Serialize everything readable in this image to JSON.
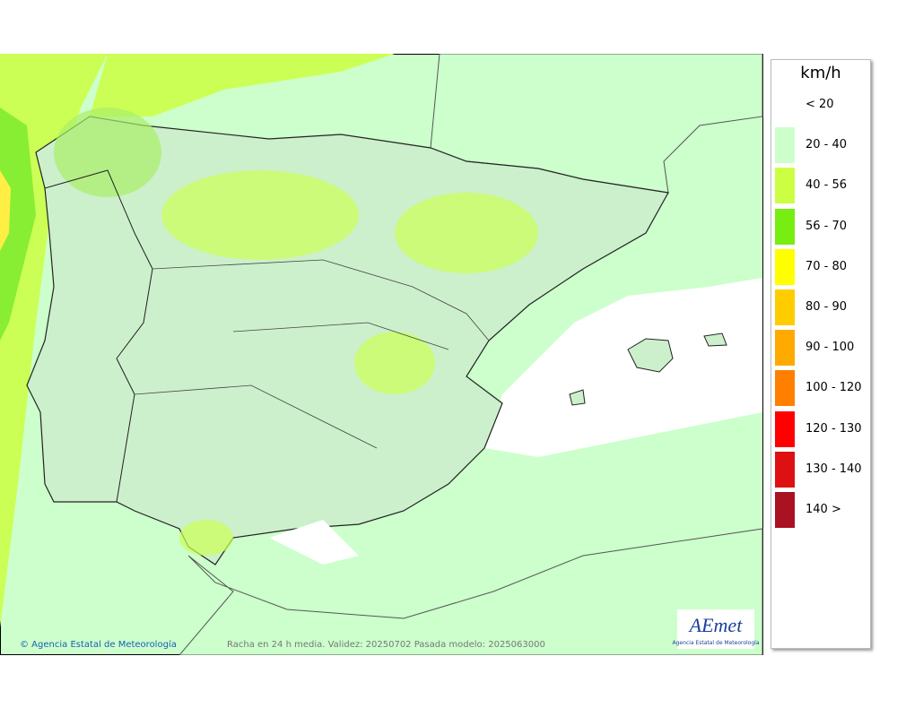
{
  "legend": {
    "title": "km/h",
    "items": [
      {
        "label": "< 20",
        "color": "#ffffff"
      },
      {
        "label": "20 - 40",
        "color": "#ccffcc"
      },
      {
        "label": "40 - 56",
        "color": "#ccff44"
      },
      {
        "label": "56 - 70",
        "color": "#77ee11"
      },
      {
        "label": "70 - 80",
        "color": "#ffff00"
      },
      {
        "label": "80 - 90",
        "color": "#ffcc00"
      },
      {
        "label": "90 - 100",
        "color": "#ffaa00"
      },
      {
        "label": "100 - 120",
        "color": "#ff8000"
      },
      {
        "label": "120 - 130",
        "color": "#ff0000"
      },
      {
        "label": "130 - 140",
        "color": "#dd1111"
      },
      {
        "label": "140 >",
        "color": "#aa1122"
      }
    ]
  },
  "footer": {
    "copyright": "© Agencia Estatal de Meteorología",
    "caption": "Racha en 24 h media. Validez: 20250702 Pasada modelo: 2025063000"
  },
  "logo": {
    "name": "AEmet",
    "subtitle": "Agencia Estatal de Meteorología"
  }
}
